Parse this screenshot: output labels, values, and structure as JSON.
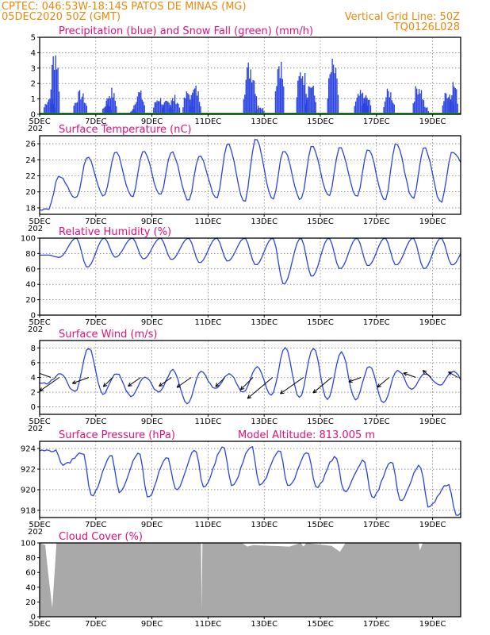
{
  "header": {
    "line1_left": "CPTEC:   046:53W-18:14S  PATOS DE MINAS (MG)",
    "line2_left": "05DEC2020 50Z (GMT)",
    "line2_right": "Vertical Grid Line: 50Z",
    "line3_right": "TQ0126L028"
  },
  "colors": {
    "header_text": "#e8890c",
    "panel_title": "#e0107a",
    "series_line": "#2b44e0",
    "precip_bar": "#2b44e0",
    "snow_bar": "#17a317",
    "cloud_fill": "#a9a9a9"
  },
  "x_axis": {
    "start_day": 5,
    "end_day": 20,
    "tick_labels": [
      "5DEC",
      "7DEC",
      "9DEC",
      "11DEC",
      "13DEC",
      "15DEC",
      "17DEC",
      "19DEC"
    ],
    "tick_days": [
      5,
      7,
      9,
      11,
      13,
      15,
      17,
      19
    ],
    "year_stub": "202"
  },
  "chart_data": [
    {
      "id": "precip",
      "type": "bar",
      "title": "Precipitation (blue) and Snow Fall (green) (mm/h)",
      "ylim": [
        0,
        5
      ],
      "yticks": [
        0,
        1,
        2,
        3,
        4,
        5
      ],
      "grid": true,
      "precip_events": [
        {
          "day": 5.35,
          "peak": 1.3,
          "hours": 10
        },
        {
          "day": 5.55,
          "peak": 5.0,
          "hours": 8
        },
        {
          "day": 6.45,
          "peak": 1.6,
          "hours": 12
        },
        {
          "day": 7.4,
          "peak": 0.9,
          "hours": 8
        },
        {
          "day": 7.55,
          "peak": 1.8,
          "hours": 10
        },
        {
          "day": 8.35,
          "peak": 0.4,
          "hours": 6
        },
        {
          "day": 8.55,
          "peak": 1.7,
          "hours": 10
        },
        {
          "day": 9.25,
          "peak": 1.3,
          "hours": 10
        },
        {
          "day": 9.55,
          "peak": 1.0,
          "hours": 10
        },
        {
          "day": 9.8,
          "peak": 1.3,
          "hours": 10
        },
        {
          "day": 10.3,
          "peak": 1.7,
          "hours": 10
        },
        {
          "day": 10.55,
          "peak": 2.0,
          "hours": 10
        },
        {
          "day": 12.5,
          "peak": 3.8,
          "hours": 12
        },
        {
          "day": 12.85,
          "peak": 0.7,
          "hours": 8
        },
        {
          "day": 13.55,
          "peak": 4.3,
          "hours": 8
        },
        {
          "day": 14.35,
          "peak": 3.5,
          "hours": 10
        },
        {
          "day": 14.65,
          "peak": 2.4,
          "hours": 10
        },
        {
          "day": 15.45,
          "peak": 3.8,
          "hours": 10
        },
        {
          "day": 16.45,
          "peak": 1.6,
          "hours": 12
        },
        {
          "day": 16.65,
          "peak": 1.4,
          "hours": 8
        },
        {
          "day": 17.45,
          "peak": 1.8,
          "hours": 10
        },
        {
          "day": 18.5,
          "peak": 2.3,
          "hours": 10
        },
        {
          "day": 18.75,
          "peak": 0.6,
          "hours": 6
        },
        {
          "day": 19.55,
          "peak": 1.8,
          "hours": 10
        },
        {
          "day": 19.75,
          "peak": 2.4,
          "hours": 8
        }
      ],
      "snow": 0
    },
    {
      "id": "temp",
      "type": "line",
      "title": "Surface Temperature (nC)",
      "ylim": [
        17.2,
        27
      ],
      "yticks": [
        18,
        20,
        22,
        24,
        26
      ],
      "grid": true,
      "daily_max": [
        22.0,
        24.3,
        25.0,
        25.2,
        25.0,
        24.5,
        26.0,
        26.6,
        25.2,
        25.8,
        25.5,
        25.3,
        26.0,
        25.5,
        25.0,
        24.9
      ],
      "daily_min": [
        17.8,
        19.2,
        19.5,
        19.3,
        19.6,
        19.0,
        19.2,
        18.8,
        19.1,
        19.0,
        19.5,
        19.3,
        19.0,
        19.2,
        18.7,
        22.3
      ]
    },
    {
      "id": "rh",
      "type": "line",
      "title": "Relative Humidity (%)",
      "ylim": [
        0,
        100
      ],
      "yticks": [
        0,
        20,
        40,
        60,
        80,
        100
      ],
      "grid": true,
      "daily_max": [
        78,
        100,
        100,
        100,
        100,
        100,
        100,
        100,
        100,
        100,
        100,
        100,
        100,
        100,
        100,
        95
      ],
      "daily_min": [
        75,
        62,
        75,
        73,
        72,
        68,
        70,
        65,
        40,
        50,
        60,
        64,
        65,
        60,
        65,
        68
      ]
    },
    {
      "id": "wind",
      "type": "line",
      "title": "Surface Wind (m/s)",
      "ylim": [
        -1,
        9
      ],
      "yticks": [
        0,
        2,
        4,
        6,
        8
      ],
      "grid": true,
      "daily_max": [
        4.5,
        8.0,
        4.5,
        4.0,
        5.0,
        4.8,
        4.5,
        5.5,
        8.0,
        8.0,
        7.5,
        5.5,
        5.0,
        4.5,
        4.8,
        4.6
      ],
      "daily_min": [
        3.2,
        2.0,
        1.8,
        1.5,
        2.0,
        0.5,
        2.5,
        2.0,
        1.5,
        1.2,
        1.0,
        1.0,
        0.5,
        2.5,
        3.0,
        2.5
      ],
      "arrows": [
        {
          "day": 5.05,
          "speed": 4.2,
          "dir_deg": 180
        },
        {
          "day": 5.4,
          "speed": 4.3,
          "dir_deg": 160
        },
        {
          "day": 5.7,
          "speed": 5.5,
          "dir_deg": 215
        },
        {
          "day": 6.75,
          "speed": 4.0,
          "dir_deg": 200
        },
        {
          "day": 7.6,
          "speed": 3.0,
          "dir_deg": 225
        },
        {
          "day": 8.6,
          "speed": 3.5,
          "dir_deg": 215
        },
        {
          "day": 9.7,
          "speed": 3.5,
          "dir_deg": 215
        },
        {
          "day": 10.4,
          "speed": 4.0,
          "dir_deg": 215
        },
        {
          "day": 11.6,
          "speed": 3.0,
          "dir_deg": 225
        },
        {
          "day": 12.6,
          "speed": 4.0,
          "dir_deg": 225
        },
        {
          "day": 13.3,
          "speed": 7.5,
          "dir_deg": 220
        },
        {
          "day": 14.4,
          "speed": 6.5,
          "dir_deg": 215
        },
        {
          "day": 15.4,
          "speed": 5.5,
          "dir_deg": 220
        },
        {
          "day": 16.45,
          "speed": 3.0,
          "dir_deg": 200
        },
        {
          "day": 17.45,
          "speed": 3.5,
          "dir_deg": 220
        },
        {
          "day": 18.4,
          "speed": 3.0,
          "dir_deg": 160
        },
        {
          "day": 18.95,
          "speed": 2.5,
          "dir_deg": 140
        },
        {
          "day": 19.9,
          "speed": 2.5,
          "dir_deg": 150
        }
      ]
    },
    {
      "id": "pres",
      "type": "line",
      "title": "Surface Pressure (hPa)",
      "annotation": "Model Altitude: 813.005 m",
      "ylim": [
        917.3,
        924.7
      ],
      "yticks": [
        918,
        920,
        922,
        924
      ],
      "grid": true,
      "daily_max": [
        923.8,
        923.6,
        923.3,
        923.6,
        923.2,
        923.8,
        924.2,
        924.2,
        923.8,
        923.7,
        923.2,
        922.8,
        922.7,
        922.3,
        920.5,
        918.5
      ],
      "daily_min": [
        922.4,
        919.4,
        919.8,
        919.2,
        920.0,
        920.2,
        920.5,
        920.4,
        920.3,
        920.2,
        919.8,
        919.2,
        919.0,
        918.4,
        917.5,
        917.3
      ]
    },
    {
      "id": "cloud",
      "type": "area",
      "title": "Cloud Cover (%)",
      "ylim": [
        0,
        100
      ],
      "yticks": [
        0,
        20,
        40,
        60,
        80,
        100
      ],
      "grid": false,
      "points": [
        [
          5.0,
          100
        ],
        [
          5.2,
          97
        ],
        [
          5.3,
          60
        ],
        [
          5.45,
          12
        ],
        [
          5.6,
          100
        ],
        [
          10.75,
          100
        ],
        [
          10.77,
          8
        ],
        [
          10.8,
          100
        ],
        [
          12.2,
          100
        ],
        [
          12.4,
          95
        ],
        [
          12.6,
          97
        ],
        [
          13.9,
          95
        ],
        [
          14.3,
          100
        ],
        [
          14.4,
          95
        ],
        [
          14.5,
          100
        ],
        [
          15.4,
          96
        ],
        [
          15.7,
          88
        ],
        [
          15.9,
          100
        ],
        [
          18.5,
          100
        ],
        [
          18.55,
          90
        ],
        [
          18.65,
          100
        ],
        [
          20.0,
          100
        ]
      ]
    }
  ]
}
